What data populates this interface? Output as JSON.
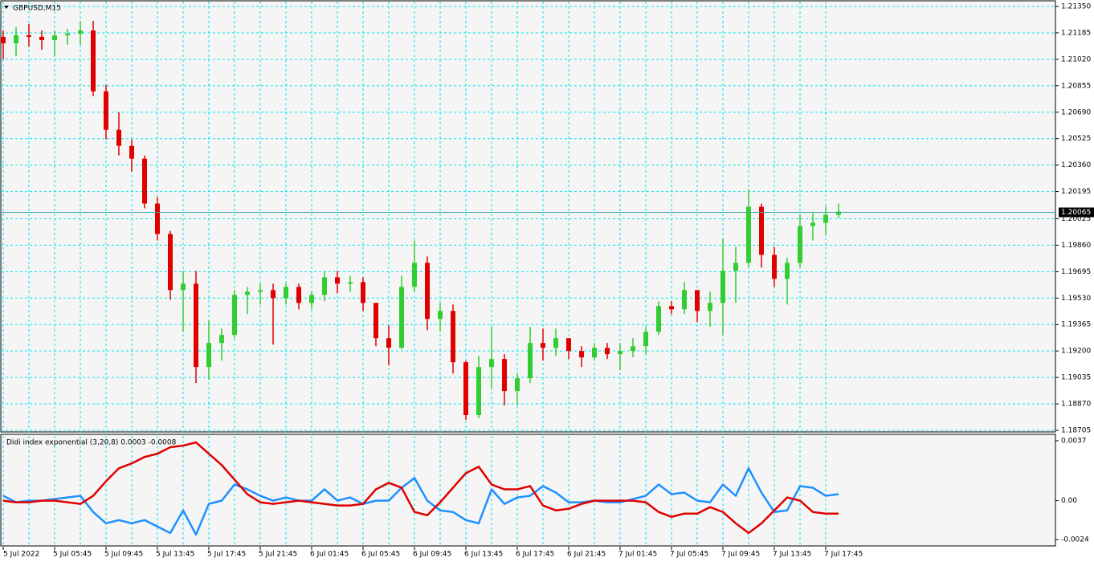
{
  "chart_data": [
    {
      "type": "candlestick",
      "title": "GBPUSD,M15",
      "categories": [
        "5 Jul 2022",
        null,
        null,
        null,
        "5 Jul 05:45",
        null,
        null,
        null,
        "5 Jul 09:45",
        null,
        null,
        null,
        "5 Jul 13:45",
        null,
        null,
        null,
        "5 Jul 17:45",
        null,
        null,
        null,
        "5 Jul 21:45",
        null,
        null,
        null,
        "6 Jul 01:45",
        null,
        null,
        null,
        "6 Jul 05:45",
        null,
        null,
        null,
        "6 Jul 09:45",
        null,
        null,
        null,
        "6 Jul 13:45",
        null,
        null,
        null,
        "6 Jul 17:45",
        null,
        null,
        null,
        "6 Jul 21:45",
        null,
        null,
        null,
        "7 Jul 01:45",
        null,
        null,
        null,
        "7 Jul 05:45",
        null,
        null,
        null,
        "7 Jul 09:45",
        null,
        null,
        null,
        "7 Jul 13:45",
        null,
        null,
        null,
        "7 Jul 17:45",
        null
      ],
      "open": [
        1.2116,
        1.2112,
        1.2117,
        1.2116,
        1.2114,
        1.2117,
        1.2118,
        1.212,
        1.2082,
        1.2058,
        1.2048,
        1.204,
        1.2012,
        1.1993,
        1.1958,
        1.1962,
        1.191,
        1.1925,
        1.193,
        1.1955,
        1.1957,
        1.1958,
        1.1953,
        1.196,
        1.195,
        1.1955,
        1.1966,
        1.1962,
        1.1963,
        1.195,
        1.1928,
        1.1922,
        1.196,
        1.1975,
        1.194,
        1.1945,
        1.1913,
        1.188,
        1.191,
        1.1915,
        1.1895,
        1.1903,
        1.1925,
        1.1922,
        1.1928,
        1.192,
        1.1916,
        1.1922,
        1.1918,
        1.192,
        1.1923,
        1.1932,
        1.1948,
        1.1946,
        1.1958,
        1.1945,
        1.195,
        1.197,
        1.1975,
        1.201,
        1.198,
        1.1965,
        1.1975,
        1.1998,
        1.2,
        1.2005
      ],
      "high": [
        1.212,
        1.2122,
        1.2124,
        1.212,
        1.212,
        1.2121,
        1.2126,
        1.2126,
        1.2086,
        1.2069,
        1.2052,
        1.2042,
        1.2016,
        1.1995,
        1.197,
        1.197,
        1.1939,
        1.1934,
        1.1958,
        1.196,
        1.1962,
        1.1962,
        1.1962,
        1.1962,
        1.1957,
        1.197,
        1.197,
        1.1967,
        1.1966,
        1.195,
        1.1936,
        1.1967,
        1.1989,
        1.1979,
        1.195,
        1.1949,
        1.1914,
        1.1917,
        1.1935,
        1.1918,
        1.1906,
        1.1935,
        1.1934,
        1.1934,
        1.1928,
        1.1923,
        1.1925,
        1.1925,
        1.1925,
        1.1928,
        1.1935,
        1.1951,
        1.1951,
        1.1963,
        1.1958,
        1.1957,
        1.199,
        1.1985,
        1.2021,
        1.2012,
        1.1985,
        1.1978,
        1.2005,
        1.2006,
        1.201,
        1.2012
      ],
      "low": [
        1.2102,
        1.2104,
        1.211,
        1.2108,
        1.2104,
        1.2111,
        1.2111,
        1.2079,
        1.2052,
        1.2042,
        1.2032,
        1.2009,
        1.1989,
        1.1952,
        1.1932,
        1.19,
        1.1902,
        1.1914,
        1.1928,
        1.1943,
        1.1949,
        1.1924,
        1.1949,
        1.1946,
        1.1946,
        1.1951,
        1.1956,
        1.1957,
        1.1945,
        1.1923,
        1.1911,
        1.1921,
        1.1957,
        1.1933,
        1.1932,
        1.1906,
        1.1877,
        1.1878,
        1.1896,
        1.1886,
        1.1886,
        1.19,
        1.1914,
        1.1917,
        1.1915,
        1.191,
        1.1914,
        1.1915,
        1.1908,
        1.1916,
        1.1918,
        1.193,
        1.1943,
        1.1943,
        1.1938,
        1.1935,
        1.193,
        1.195,
        1.1972,
        1.1972,
        1.196,
        1.1949,
        1.1972,
        1.1989,
        1.1992,
        1.2003
      ],
      "close": [
        1.2112,
        1.2117,
        1.2116,
        1.2114,
        1.2117,
        1.2118,
        1.212,
        1.2082,
        1.2058,
        1.2048,
        1.204,
        1.2012,
        1.1993,
        1.1958,
        1.1962,
        1.191,
        1.1925,
        1.193,
        1.1955,
        1.1957,
        1.1958,
        1.1953,
        1.196,
        1.195,
        1.1955,
        1.1966,
        1.1962,
        1.1963,
        1.195,
        1.1928,
        1.1922,
        1.196,
        1.1975,
        1.194,
        1.1945,
        1.1913,
        1.188,
        1.191,
        1.1915,
        1.1895,
        1.1903,
        1.1925,
        1.1922,
        1.1928,
        1.192,
        1.1916,
        1.1922,
        1.1918,
        1.192,
        1.1923,
        1.1932,
        1.1948,
        1.1946,
        1.1958,
        1.1945,
        1.195,
        1.197,
        1.1975,
        1.201,
        1.198,
        1.1965,
        1.1975,
        1.1998,
        1.2,
        1.2005,
        1.2007
      ],
      "up_color": "#32cd32",
      "down_color": "#e00000",
      "grid_color": "#00e5ee",
      "ylim": [
        1.18705,
        1.2135
      ],
      "yticks": [
        1.18705,
        {
          "value": 1.1887,
          "label": "1.18870"
        },
        1.19035,
        {
          "value": 1.192,
          "label": "1.19200"
        },
        1.19365,
        {
          "value": 1.1953,
          "label": "1.19530"
        },
        1.19695,
        {
          "value": 1.1986,
          "label": "1.19860"
        },
        1.20025,
        1.20195,
        {
          "value": 1.2036,
          "label": "1.20360"
        },
        1.20525,
        {
          "value": 1.2069,
          "label": "1.20690"
        },
        1.20855,
        {
          "value": 1.2102,
          "label": "1.21020"
        },
        1.21185,
        {
          "value": 1.2135,
          "label": "1.21350"
        }
      ],
      "current_price": 1.20065,
      "grid": true
    },
    {
      "type": "line",
      "title": "Didi index exponential (3,20,8) 0.0003 -0.0008",
      "series": [
        {
          "color": "#1e90ff",
          "values": [
            0.0003,
            -0.0001,
            0,
            0,
            0.0001,
            0.0002,
            0.0003,
            -0.0007,
            -0.0014,
            -0.0012,
            -0.0014,
            -0.0012,
            -0.0016,
            -0.002,
            -0.0006,
            -0.0021,
            -0.0002,
            0,
            0.001,
            0.0007,
            0.0003,
            0,
            0.0002,
            0,
            0,
            0.0007,
            0,
            0.0002,
            -0.0002,
            0,
            0,
            0.0008,
            0.0014,
            0,
            -0.0006,
            -0.0007,
            -0.0012,
            -0.0014,
            0.0007,
            -0.0002,
            0.0002,
            0.0003,
            0.0009,
            0.0005,
            -0.0001,
            -0.0001,
            0,
            -0.0001,
            -0.0001,
            0.0001,
            0.0003,
            0.001,
            0.0004,
            0.0005,
            0,
            -0.0001,
            0.001,
            0.0003,
            0.002,
            0.0005,
            -0.0007,
            -0.0006,
            0.0009,
            0.0008,
            0.0003,
            0.0004
          ]
        },
        {
          "color": "#e00000",
          "values": [
            0,
            -0.0001,
            -0.0001,
            0,
            0,
            -0.0001,
            -0.0002,
            0.0003,
            0.0012,
            0.002,
            0.0023,
            0.0027,
            0.0029,
            0.0033,
            0.0034,
            0.0036,
            0.0029,
            0.0022,
            0.0013,
            0.0004,
            -0.0001,
            -0.0002,
            -0.0001,
            0,
            -0.0001,
            -0.0002,
            -0.0003,
            -0.0003,
            -0.0002,
            0.0007,
            0.0011,
            0.0008,
            -0.0007,
            -0.0009,
            -0.0001,
            0.0008,
            0.0017,
            0.0021,
            0.001,
            0.0007,
            0.0007,
            0.0009,
            -0.0003,
            -0.0006,
            -0.0005,
            -0.0002,
            0,
            0,
            0,
            0,
            -0.0001,
            -0.0007,
            -0.001,
            -0.0008,
            -0.0008,
            -0.0004,
            -0.0007,
            -0.0014,
            -0.002,
            -0.0014,
            -0.0006,
            0.0002,
            0,
            -0.0007,
            -0.0008,
            -0.0008
          ]
        }
      ],
      "ylim": [
        -0.0024,
        0.0037
      ],
      "yticks": [
        -0.0024,
        {
          "value": 0,
          "label": "0.00"
        },
        0.0037
      ]
    }
  ]
}
